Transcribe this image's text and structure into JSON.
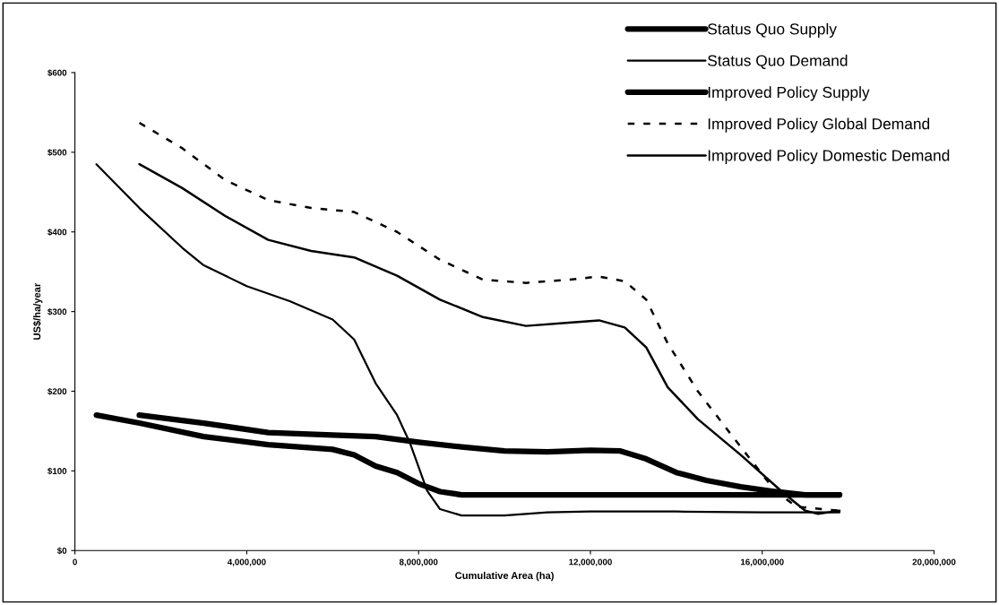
{
  "chart_data": {
    "type": "line",
    "xlabel": "Cumulative Area (ha)",
    "ylabel": "US$/ha/year",
    "xlim": [
      0,
      20000000
    ],
    "xticks": [
      {
        "value": 0,
        "label": "0"
      },
      {
        "value": 4000000,
        "label": "4,000,000"
      },
      {
        "value": 8000000,
        "label": "8,000,000"
      },
      {
        "value": 12000000,
        "label": "12,000,000"
      },
      {
        "value": 16000000,
        "label": "16,000,000"
      },
      {
        "value": 20000000,
        "label": "20,000,000"
      }
    ],
    "ylim": [
      0,
      600
    ],
    "yticks": [
      {
        "value": 0,
        "label": "$0"
      },
      {
        "value": 100,
        "label": "$100"
      },
      {
        "value": 200,
        "label": "$200"
      },
      {
        "value": 300,
        "label": "$300"
      },
      {
        "value": 400,
        "label": "$400"
      },
      {
        "value": 500,
        "label": "$500"
      },
      {
        "value": 600,
        "label": "$600"
      }
    ],
    "grid": false,
    "legend": "top right",
    "marker": "none",
    "series": [
      {
        "name": "Status Quo Supply",
        "color": "#000000",
        "x": [
          500000,
          1500000,
          3000000,
          4500000,
          6000000,
          6500000,
          7000000,
          7500000,
          8000000,
          8500000,
          9000000,
          12000000,
          16000000,
          17800000
        ],
        "values": [
          170,
          160,
          143,
          133,
          127,
          120,
          106,
          98,
          84,
          74,
          70,
          70,
          70,
          70
        ]
      },
      {
        "name": "Status Quo Demand",
        "color": "#000000",
        "x": [
          500000,
          1500000,
          2500000,
          3000000,
          4000000,
          5000000,
          6000000,
          6500000,
          7000000,
          7500000,
          7800000,
          8200000,
          8500000,
          9000000,
          10000000,
          11000000,
          12000000,
          14000000,
          16000000,
          17800000
        ],
        "values": [
          485,
          430,
          380,
          358,
          332,
          313,
          290,
          265,
          210,
          170,
          135,
          75,
          52,
          44,
          44,
          48,
          49,
          49,
          48,
          48
        ]
      },
      {
        "name": "Improved Policy Supply",
        "color": "#000000",
        "x": [
          1500000,
          3000000,
          4500000,
          6000000,
          7000000,
          8000000,
          9000000,
          10000000,
          11000000,
          12000000,
          12700000,
          13300000,
          14000000,
          14700000,
          15500000,
          16300000,
          17000000,
          17800000
        ],
        "values": [
          170,
          160,
          148,
          145,
          143,
          136,
          130,
          125,
          124,
          126,
          125,
          115,
          98,
          88,
          80,
          74,
          70,
          70
        ]
      },
      {
        "name": "Improved Policy Global Demand",
        "color": "#000000",
        "line_style": "dashed",
        "x": [
          1500000,
          2500000,
          3500000,
          4500000,
          5500000,
          6500000,
          7500000,
          8500000,
          9500000,
          10500000,
          11500000,
          12200000,
          12800000,
          13300000,
          13800000,
          14500000,
          15500000,
          16300000,
          16800000,
          17800000
        ],
        "values": [
          537,
          505,
          465,
          440,
          430,
          425,
          400,
          365,
          340,
          336,
          340,
          344,
          338,
          315,
          260,
          200,
          130,
          75,
          55,
          50
        ]
      },
      {
        "name": "Improved Policy Domestic Demand",
        "color": "#000000",
        "x": [
          1500000,
          2500000,
          3500000,
          4500000,
          5500000,
          6500000,
          7500000,
          8500000,
          9500000,
          10500000,
          11500000,
          12200000,
          12800000,
          13300000,
          13800000,
          14500000,
          15500000,
          16500000,
          17000000,
          17300000,
          17800000
        ],
        "values": [
          485,
          455,
          420,
          390,
          376,
          368,
          345,
          315,
          293,
          282,
          286,
          289,
          280,
          255,
          205,
          165,
          120,
          72,
          50,
          46,
          50
        ]
      }
    ]
  }
}
